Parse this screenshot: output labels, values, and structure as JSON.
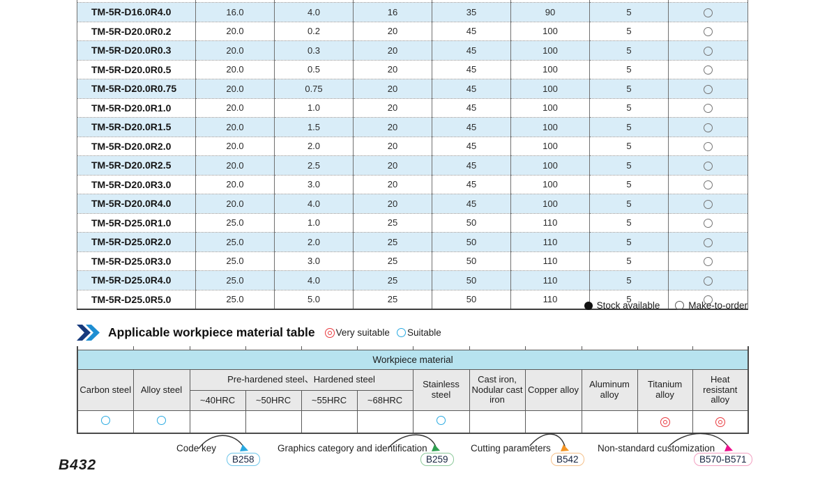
{
  "page": {
    "number": "B432"
  },
  "spec_table": {
    "rows": [
      {
        "model": "TM-5R-D16.0R4.0",
        "values": [
          "16.0",
          "4.0",
          "16",
          "35",
          "90",
          "5"
        ],
        "stock": "make-to-order"
      },
      {
        "model": "TM-5R-D20.0R0.2",
        "values": [
          "20.0",
          "0.2",
          "20",
          "45",
          "100",
          "5"
        ],
        "stock": "make-to-order"
      },
      {
        "model": "TM-5R-D20.0R0.3",
        "values": [
          "20.0",
          "0.3",
          "20",
          "45",
          "100",
          "5"
        ],
        "stock": "make-to-order"
      },
      {
        "model": "TM-5R-D20.0R0.5",
        "values": [
          "20.0",
          "0.5",
          "20",
          "45",
          "100",
          "5"
        ],
        "stock": "make-to-order"
      },
      {
        "model": "TM-5R-D20.0R0.75",
        "values": [
          "20.0",
          "0.75",
          "20",
          "45",
          "100",
          "5"
        ],
        "stock": "make-to-order"
      },
      {
        "model": "TM-5R-D20.0R1.0",
        "values": [
          "20.0",
          "1.0",
          "20",
          "45",
          "100",
          "5"
        ],
        "stock": "make-to-order"
      },
      {
        "model": "TM-5R-D20.0R1.5",
        "values": [
          "20.0",
          "1.5",
          "20",
          "45",
          "100",
          "5"
        ],
        "stock": "make-to-order"
      },
      {
        "model": "TM-5R-D20.0R2.0",
        "values": [
          "20.0",
          "2.0",
          "20",
          "45",
          "100",
          "5"
        ],
        "stock": "make-to-order"
      },
      {
        "model": "TM-5R-D20.0R2.5",
        "values": [
          "20.0",
          "2.5",
          "20",
          "45",
          "100",
          "5"
        ],
        "stock": "make-to-order"
      },
      {
        "model": "TM-5R-D20.0R3.0",
        "values": [
          "20.0",
          "3.0",
          "20",
          "45",
          "100",
          "5"
        ],
        "stock": "make-to-order"
      },
      {
        "model": "TM-5R-D20.0R4.0",
        "values": [
          "20.0",
          "4.0",
          "20",
          "45",
          "100",
          "5"
        ],
        "stock": "make-to-order"
      },
      {
        "model": "TM-5R-D25.0R1.0",
        "values": [
          "25.0",
          "1.0",
          "25",
          "50",
          "110",
          "5"
        ],
        "stock": "make-to-order"
      },
      {
        "model": "TM-5R-D25.0R2.0",
        "values": [
          "25.0",
          "2.0",
          "25",
          "50",
          "110",
          "5"
        ],
        "stock": "make-to-order"
      },
      {
        "model": "TM-5R-D25.0R3.0",
        "values": [
          "25.0",
          "3.0",
          "25",
          "50",
          "110",
          "5"
        ],
        "stock": "make-to-order"
      },
      {
        "model": "TM-5R-D25.0R4.0",
        "values": [
          "25.0",
          "4.0",
          "25",
          "50",
          "110",
          "5"
        ],
        "stock": "make-to-order"
      },
      {
        "model": "TM-5R-D25.0R5.0",
        "values": [
          "25.0",
          "5.0",
          "25",
          "50",
          "110",
          "5"
        ],
        "stock": "make-to-order"
      }
    ],
    "legend": {
      "stock_available": "Stock available",
      "make_to_order": "Make-to-order"
    }
  },
  "material_section": {
    "title": "Applicable workpiece material table",
    "legend": {
      "very_suitable": "Very suitable",
      "suitable": "Suitable"
    },
    "table": {
      "header": "Workpiece material",
      "labels": {
        "carbon": "Carbon steel",
        "alloy": "Alloy steel",
        "prehardened_group": "Pre-hardened steel、Hardened steel",
        "hrc": [
          "~40HRC",
          "~50HRC",
          "~55HRC",
          "~68HRC"
        ],
        "stainless": "Stainless steel",
        "cast_iron": "Cast iron, Nodular cast iron",
        "copper": "Copper alloy",
        "aluminum": "Aluminum alloy",
        "titanium": "Titanium alloy",
        "heat": "Heat resistant alloy"
      },
      "ratings": [
        "suitable",
        "suitable",
        "",
        "",
        "",
        "",
        "suitable",
        "",
        "",
        "",
        "very_suitable",
        "very_suitable"
      ]
    }
  },
  "footer_links": [
    {
      "label": "Code key",
      "badge": "B258",
      "badge_border": "#6cc5e9",
      "arrow_color": "#29a8e0"
    },
    {
      "label": "Graphics category and identification",
      "badge": "B259",
      "badge_border": "#8cc99a",
      "arrow_color": "#2e9e4f"
    },
    {
      "label": "Cutting parameters",
      "badge": "B542",
      "badge_border": "#f5c08a",
      "arrow_color": "#f49423"
    },
    {
      "label": "Non-standard customization",
      "badge": "B570-B571",
      "badge_border": "#f29fc0",
      "arrow_color": "#ec108c"
    }
  ],
  "colors": {
    "row_blue": "#d9edf8",
    "table_header_cyan": "#b7e3ef",
    "label_gray": "#e9e9e9",
    "suitable_blue": "#29aae1",
    "very_suitable_red": "#e8383d",
    "chevron_dark": "#173a7d",
    "chevron_light": "#1e8ed2"
  }
}
